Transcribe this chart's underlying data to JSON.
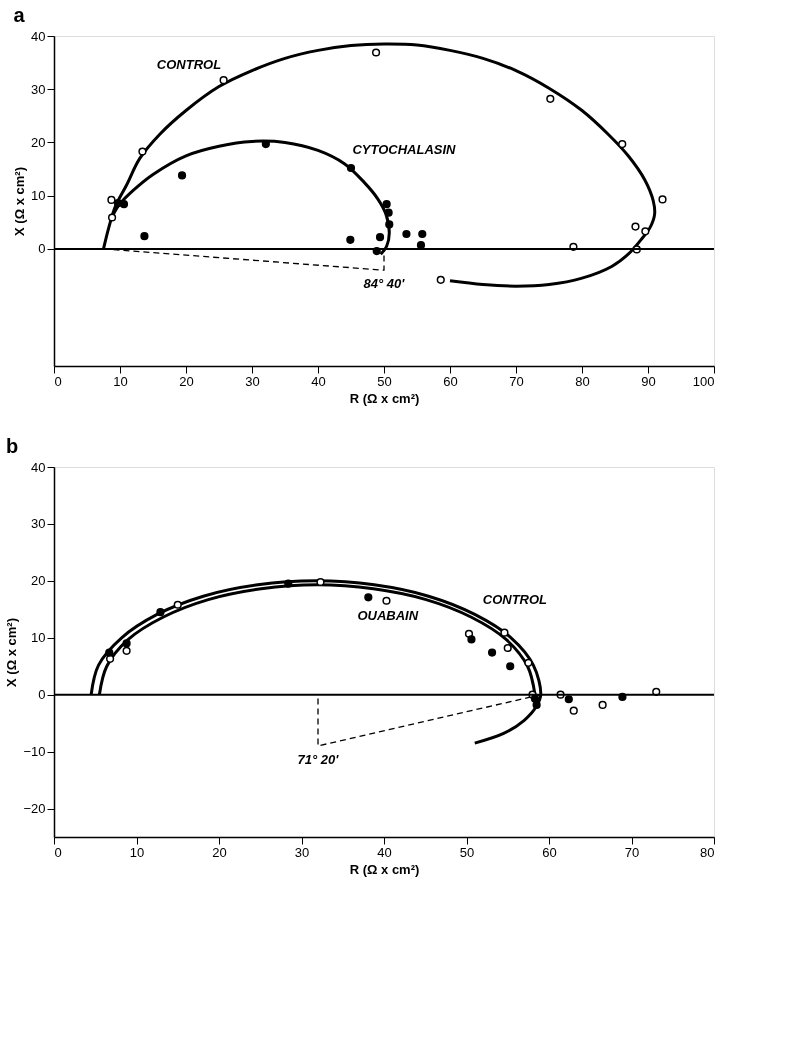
{
  "chart_data": [
    {
      "type": "line",
      "title": "a",
      "xlabel": "R (Ω x cm²)",
      "ylabel": "X (Ω x cm²)",
      "xlim": [
        0,
        100
      ],
      "ylim": [
        -22,
        40
      ],
      "xticks": [
        0,
        10,
        20,
        30,
        40,
        50,
        60,
        70,
        80,
        90,
        100
      ],
      "yticks": [
        0,
        10,
        20,
        30,
        40
      ],
      "grid": false,
      "ref_lines": [
        {
          "axis": "y",
          "value": 0,
          "color": "#000000"
        }
      ],
      "series": [
        {
          "name": "CONTROL",
          "color": "#000000",
          "line_style": "solid",
          "marker": "none",
          "x": [
            7.5,
            8.3,
            9.3,
            11,
            13,
            16,
            20,
            25,
            30,
            35,
            40,
            45,
            50,
            55,
            60,
            65,
            70,
            75,
            80,
            84,
            87,
            89.5,
            90.8,
            91,
            90.3,
            88.8,
            87,
            84.5,
            80,
            75,
            70,
            65,
            60
          ],
          "values": [
            0,
            4,
            8,
            12,
            17,
            21.5,
            26,
            30.5,
            33.5,
            35.8,
            37.3,
            38.2,
            38.5,
            38.3,
            37.3,
            35.8,
            33.5,
            30.2,
            26,
            21.5,
            17.5,
            13,
            9,
            6.5,
            4,
            1.5,
            -1,
            -3.3,
            -5.5,
            -6.7,
            -7,
            -6.7,
            -6
          ]
        },
        {
          "name": "CYTOCHALASIN",
          "color": "#000000",
          "line_style": "solid",
          "marker": "none",
          "x": [
            9,
            10,
            12,
            15,
            20,
            25,
            30,
            35,
            40,
            44,
            47,
            49,
            50.3,
            50.8,
            50.4,
            49.5
          ],
          "values": [
            6.5,
            8.5,
            11,
            14,
            17.5,
            19.3,
            20.2,
            20,
            18.5,
            16,
            12.5,
            9.5,
            6.5,
            3,
            0.5,
            -1
          ]
        },
        {
          "name": "84° 40'",
          "color": "#000000",
          "line_style": "dashed",
          "marker": "none",
          "x": [
            7.5,
            50,
            50
          ],
          "values": [
            0,
            -4,
            0
          ]
        },
        {
          "type": "scatter",
          "color": "#ffffff",
          "marker": "circle",
          "x": [
            8.7,
            8.8,
            13.4,
            25.7,
            48.8,
            75.2,
            86.1,
            92.2,
            88.1,
            89.6,
            78.7,
            88.3,
            58.6
          ],
          "values": [
            9.2,
            5.9,
            18.3,
            31.7,
            36.9,
            28.2,
            19.7,
            9.3,
            4.2,
            3.3,
            0.4,
            -0.1,
            -5.8
          ]
        },
        {
          "type": "scatter",
          "color": "#000000",
          "marker": "circle",
          "x": [
            9.7,
            10.6,
            19.4,
            13.7,
            32.1,
            45.0,
            44.9,
            50.4,
            50.7,
            50.8,
            49.4,
            48.9,
            53.4,
            55.8,
            55.6
          ],
          "values": [
            8.6,
            8.4,
            13.8,
            2.4,
            19.7,
            15.2,
            1.7,
            8.4,
            6.8,
            4.6,
            2.2,
            -0.4,
            2.8,
            2.8,
            0.7
          ]
        }
      ]
    },
    {
      "type": "line",
      "title": "b",
      "xlabel": "R (Ω x cm²)",
      "ylabel": "X (Ω x cm²)",
      "xlim": [
        0,
        80
      ],
      "ylim": [
        -25,
        40
      ],
      "xticks": [
        0,
        10,
        20,
        30,
        40,
        50,
        60,
        70,
        80
      ],
      "yticks": [
        -20,
        -10,
        0,
        10,
        20,
        30,
        40
      ],
      "grid": false,
      "ref_lines": [
        {
          "axis": "y",
          "value": 0,
          "color": "#000000"
        }
      ],
      "series": [
        {
          "name": "CONTROL",
          "color": "#000000",
          "line_style": "solid",
          "marker": "none",
          "x": [
            4.5,
            5.4,
            8.2,
            12.5,
            18.1,
            24.7,
            31.8,
            38.8,
            45.4,
            51.0,
            55.4,
            58.1,
            59.0,
            58.5,
            57,
            54.5,
            51
          ],
          "values": [
            0,
            5.2,
            10.0,
            14.1,
            17.3,
            19.3,
            20,
            19.3,
            17.3,
            14.1,
            10.0,
            5.2,
            0,
            -2,
            -4.5,
            -6.8,
            -8.5
          ]
        },
        {
          "name": "OUABAIN",
          "color": "#000000",
          "line_style": "solid",
          "marker": "none",
          "x": [
            5.5,
            6.4,
            9.0,
            13.2,
            18.7,
            25.1,
            31.9,
            38.7,
            45.1,
            50.6,
            54.8,
            57.4,
            58.3
          ],
          "values": [
            0,
            5.0,
            9.7,
            13.6,
            16.7,
            18.6,
            19.3,
            18.6,
            16.7,
            13.6,
            9.7,
            5.0,
            0
          ]
        },
        {
          "name": "71° 20'",
          "color": "#000000",
          "line_style": "dashed",
          "marker": "none",
          "x": [
            59,
            32,
            32
          ],
          "values": [
            0,
            -9,
            0
          ]
        },
        {
          "type": "scatter",
          "color": "#ffffff",
          "marker": "circle",
          "x": [
            6.8,
            8.8,
            15.0,
            32.3,
            40.3,
            50.3,
            54.6,
            55.0,
            57.5,
            58.0,
            61.4,
            73.0,
            63,
            66.5
          ],
          "values": [
            6.3,
            7.7,
            15.8,
            19.8,
            16.5,
            10.7,
            10.9,
            8.2,
            5.6,
            0,
            0,
            0.5,
            -2.8,
            -1.8
          ]
        },
        {
          "type": "scatter",
          "color": "#000000",
          "marker": "circle",
          "x": [
            6.7,
            8.8,
            12.9,
            28.4,
            38.1,
            50.6,
            53.1,
            55.3,
            58.3,
            62.4,
            68.9,
            58.5
          ],
          "values": [
            7.4,
            9.0,
            14.5,
            19.5,
            17.1,
            9.7,
            7.4,
            5.0,
            -0.7,
            -0.8,
            -0.4,
            -1.8
          ]
        }
      ]
    }
  ]
}
